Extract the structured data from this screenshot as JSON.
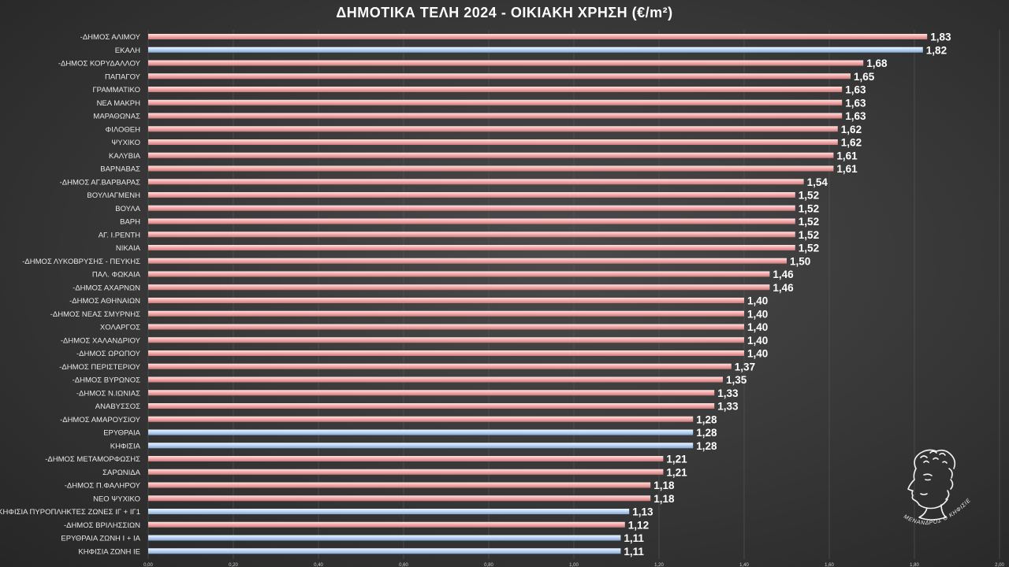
{
  "chart_data": {
    "type": "bar",
    "orientation": "horizontal",
    "title": "ΔΗΜΟΤΙΚΑ ΤΕΛΗ 2024 - ΟΙΚΙΑΚΗ ΧΡΗΣΗ (€/m²)",
    "xlim": [
      0,
      2.0
    ],
    "ticks": [
      "0,00",
      "0,20",
      "0,40",
      "0,60",
      "0,80",
      "1,00",
      "1,20",
      "1,40",
      "1,60",
      "1,80",
      "2,00"
    ],
    "tick_values": [
      0,
      0.2,
      0.4,
      0.6,
      0.8,
      1.0,
      1.2,
      1.4,
      1.6,
      1.8,
      2.0
    ],
    "grid": true,
    "colors": {
      "red": "#f4a8a8",
      "blue": "#b8d4f4"
    },
    "categories": [
      "-ΔΗΜΟΣ ΑΛΙΜΟΥ",
      "ΕΚΑΛΗ",
      "-ΔΗΜΟΣ ΚΟΡΥΔΑΛΛΟΥ",
      "ΠΑΠΑΓΟΥ",
      "ΓΡΑΜΜΑΤΙΚΟ",
      "ΝΕΑ ΜΑΚΡΗ",
      "ΜΑΡΑΘΩΝΑΣ",
      "ΦΙΛΟΘΕΗ",
      "ΨΥΧΙΚΟ",
      "ΚΑΛΥΒΙΑ",
      "ΒΑΡΝΑΒΑΣ",
      "-ΔΗΜΟΣ ΑΓ.ΒΑΡΒΑΡΑΣ",
      "ΒΟΥΛΙΑΓΜΕΝΗ",
      "ΒΟΥΛΑ",
      "ΒΑΡΗ",
      "ΑΓ. Ι.ΡΕΝΤΗ",
      "ΝΙΚΑΙΑ",
      "-ΔΗΜΟΣ ΛΥΚΟΒΡΥΣΗΣ - ΠΕΥΚΗΣ",
      "ΠΑΛ. ΦΩΚΑΙΑ",
      "-ΔΗΜΟΣ ΑΧΑΡΝΩΝ",
      "-ΔΗΜΟΣ ΑΘΗΝΑΙΩΝ",
      "-ΔΗΜΟΣ ΝΕΑΣ ΣΜΥΡΝΗΣ",
      "ΧΟΛΑΡΓΟΣ",
      "-ΔΗΜΟΣ ΧΑΛΑΝΔΡΙΟΥ",
      "-ΔΗΜΟΣ ΩΡΩΠΟΥ",
      "-ΔΗΜΟΣ ΠΕΡΙΣΤΕΡΙΟΥ",
      "-ΔΗΜΟΣ ΒΥΡΩΝΟΣ",
      "-ΔΗΜΟΣ Ν.ΙΩΝΙΑΣ",
      "ΑΝΑΒΥΣΣΟΣ",
      "-ΔΗΜΟΣ ΑΜΑΡΟΥΣΙΟΥ",
      "ΕΡΥΘΡΑΙΑ",
      "ΚΗΦΙΣΙΑ",
      "-ΔΗΜΟΣ ΜΕΤΑΜΟΡΦΩΣΗΣ",
      "ΣΑΡΩΝΙΔΑ",
      "-ΔΗΜΟΣ Π.ΦΑΛΗΡΟΥ",
      "ΝΕΟ ΨΥΧΙΚΟ",
      "ΚΗΦΙΣΙΑ ΠΥΡΟΠΛΗΚΤΕΣ ΖΩΝΕΣ ΙΓ + ΙΓ1",
      "-ΔΗΜΟΣ ΒΡΙΛΗΣΣΙΩΝ",
      "ΕΡΥΘΡΑΙΑ ΖΩΝΗ Ι + ΙΑ",
      "ΚΗΦΙΣΙΑ ΖΩΝΗ ΙΕ"
    ],
    "values": [
      1.83,
      1.82,
      1.68,
      1.65,
      1.63,
      1.63,
      1.63,
      1.62,
      1.62,
      1.61,
      1.61,
      1.54,
      1.52,
      1.52,
      1.52,
      1.52,
      1.52,
      1.5,
      1.46,
      1.46,
      1.4,
      1.4,
      1.4,
      1.4,
      1.4,
      1.37,
      1.35,
      1.33,
      1.33,
      1.28,
      1.28,
      1.28,
      1.21,
      1.21,
      1.18,
      1.18,
      1.13,
      1.12,
      1.11,
      1.11
    ],
    "value_labels": [
      "1,83",
      "1,82",
      "1,68",
      "1,65",
      "1,63",
      "1,63",
      "1,63",
      "1,62",
      "1,62",
      "1,61",
      "1,61",
      "1,54",
      "1,52",
      "1,52",
      "1,52",
      "1,52",
      "1,52",
      "1,50",
      "1,46",
      "1,46",
      "1,40",
      "1,40",
      "1,40",
      "1,40",
      "1,40",
      "1,37",
      "1,35",
      "1,33",
      "1,33",
      "1,28",
      "1,28",
      "1,28",
      "1,21",
      "1,21",
      "1,18",
      "1,18",
      "1,13",
      "1,12",
      "1,11",
      "1,11"
    ],
    "bar_colors": [
      "red",
      "blue",
      "red",
      "red",
      "red",
      "red",
      "red",
      "red",
      "red",
      "red",
      "red",
      "red",
      "red",
      "red",
      "red",
      "red",
      "red",
      "red",
      "red",
      "red",
      "red",
      "red",
      "red",
      "red",
      "red",
      "red",
      "red",
      "red",
      "red",
      "red",
      "blue",
      "blue",
      "red",
      "red",
      "red",
      "red",
      "blue",
      "red",
      "blue",
      "blue"
    ]
  },
  "logo": {
    "name": "menander-bust-icon",
    "caption": "ΜΕΝΑΝΔΡΟΣ Ο ΚΗΦΙΣΙΕΥΣ"
  }
}
